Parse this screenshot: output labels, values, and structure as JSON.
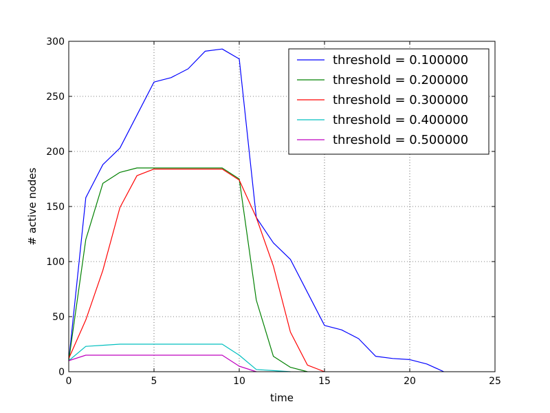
{
  "chart_data": {
    "type": "line",
    "title": "",
    "xlabel": "time",
    "ylabel": "# active nodes",
    "xlim": [
      0,
      25
    ],
    "ylim": [
      0,
      300
    ],
    "xticks": [
      0,
      5,
      10,
      15,
      20,
      25
    ],
    "yticks": [
      0,
      50,
      100,
      150,
      200,
      250,
      300
    ],
    "grid": true,
    "legend_position": "top-right",
    "series": [
      {
        "name": "threshold = 0.100000",
        "color": "#0000ff",
        "x": [
          0,
          1,
          2,
          3,
          4,
          5,
          6,
          7,
          8,
          9,
          10,
          11,
          12,
          13,
          14,
          15,
          16,
          17,
          18,
          19,
          20,
          21,
          22
        ],
        "y": [
          10,
          158,
          188,
          203,
          233,
          263,
          267,
          275,
          291,
          293,
          284,
          140,
          117,
          102,
          72,
          42,
          38,
          30,
          14,
          12,
          11,
          7,
          0
        ]
      },
      {
        "name": "threshold = 0.200000",
        "color": "#008000",
        "x": [
          0,
          1,
          2,
          3,
          4,
          5,
          6,
          7,
          8,
          9,
          10,
          11,
          12,
          13,
          14
        ],
        "y": [
          10,
          120,
          171,
          181,
          185,
          185,
          185,
          185,
          185,
          185,
          175,
          65,
          14,
          4,
          0
        ]
      },
      {
        "name": "threshold = 0.300000",
        "color": "#ff0000",
        "x": [
          0,
          1,
          2,
          3,
          4,
          5,
          6,
          7,
          8,
          9,
          10,
          11,
          12,
          13,
          14,
          15
        ],
        "y": [
          12,
          47,
          92,
          149,
          178,
          184,
          184,
          184,
          184,
          184,
          174,
          140,
          96,
          36,
          6,
          0
        ]
      },
      {
        "name": "threshold = 0.400000",
        "color": "#00bfbf",
        "x": [
          0,
          1,
          2,
          3,
          4,
          5,
          6,
          7,
          8,
          9,
          10,
          11,
          12,
          13
        ],
        "y": [
          10,
          23,
          24,
          25,
          25,
          25,
          25,
          25,
          25,
          25,
          15,
          2,
          1,
          0
        ]
      },
      {
        "name": "threshold = 0.500000",
        "color": "#bf00bf",
        "x": [
          0,
          1,
          2,
          3,
          4,
          5,
          6,
          7,
          8,
          9,
          10,
          11
        ],
        "y": [
          10,
          15,
          15,
          15,
          15,
          15,
          15,
          15,
          15,
          15,
          5,
          0
        ]
      }
    ]
  }
}
